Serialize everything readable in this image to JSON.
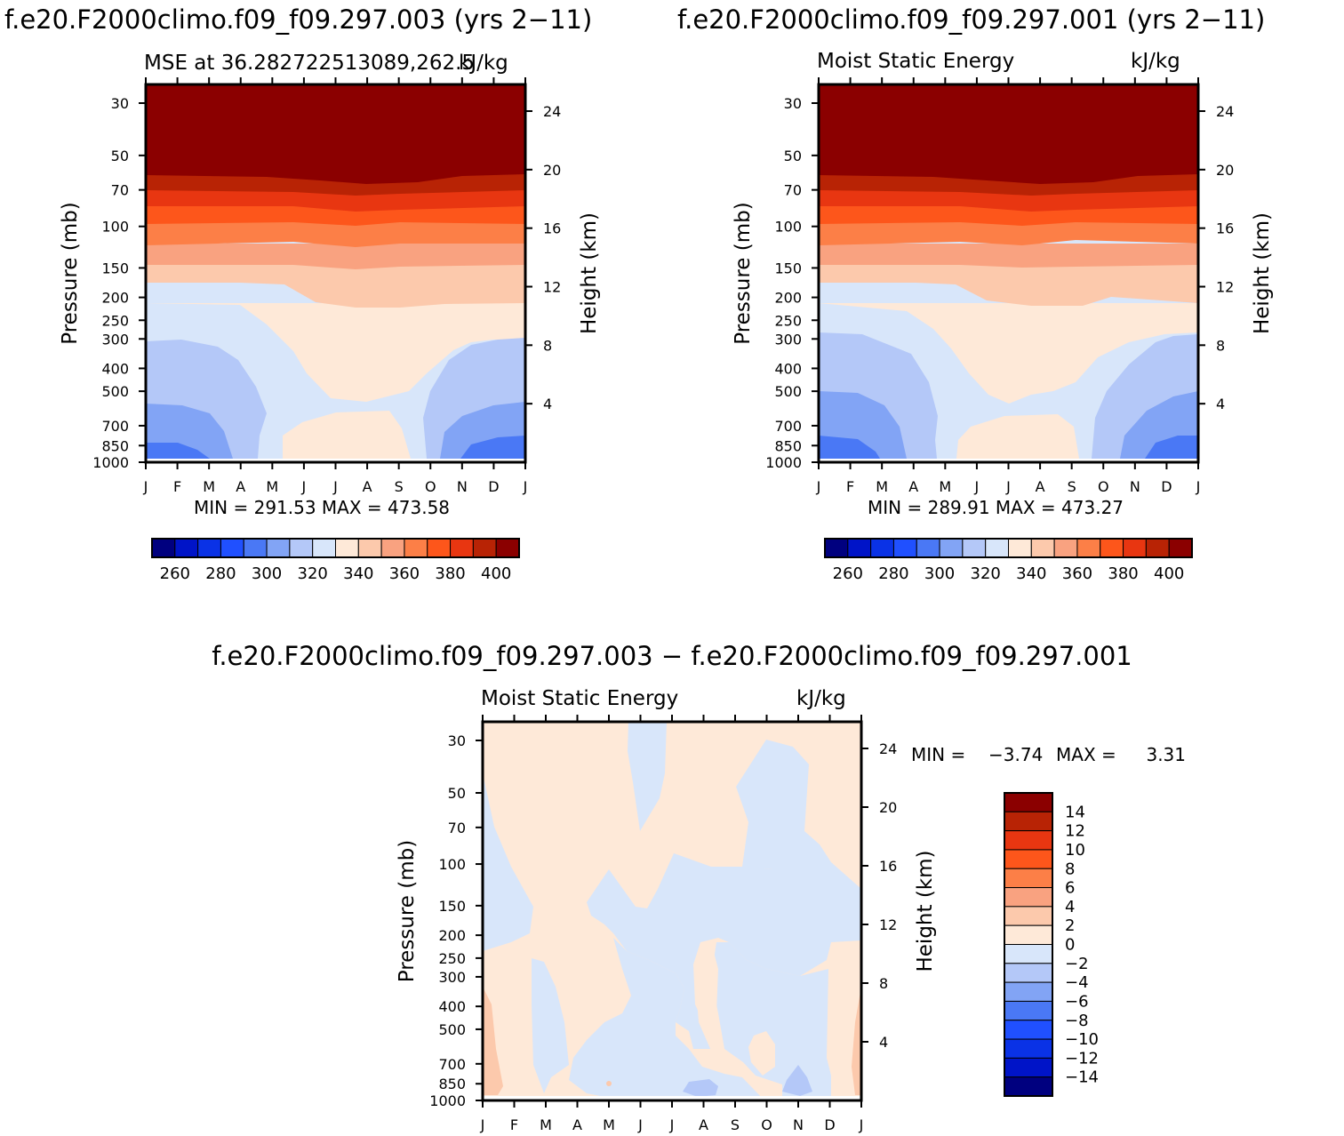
{
  "colors": {
    "mse_scale": [
      "#00007f",
      "#0014c8",
      "#0a32e6",
      "#2050ff",
      "#4a78f5",
      "#82a4f5",
      "#b4c8f8",
      "#d8e6fa",
      "#fee9d8",
      "#fcc9ac",
      "#f9a280",
      "#fc7f47",
      "#fd561b",
      "#e83611",
      "#b82305",
      "#8b0000"
    ],
    "diff_scale": [
      "#00007f",
      "#0014c8",
      "#0a32e6",
      "#2050ff",
      "#4a78f5",
      "#82a4f5",
      "#b4c8f8",
      "#d8e6fa",
      "#fee9d8",
      "#fcc9ac",
      "#f9a280",
      "#fc7f47",
      "#fd561b",
      "#e83611",
      "#b82305",
      "#8b0000"
    ]
  },
  "chart_data": [
    {
      "type": "heatmap",
      "panel": "top-left",
      "header": "f.e20.F2000climo.f09_f09.297.003 (yrs 2−11)",
      "left_title": "MSE at 36.282722513089,262.5",
      "right_title": "kJ/kg",
      "ylabel": "Pressure (mb)",
      "ylabel_right": "Height (km)",
      "pressure_ticks": [
        "30",
        "50",
        "70",
        "100",
        "150",
        "200",
        "250",
        "300",
        "400",
        "500",
        "700",
        "850",
        "1000"
      ],
      "height_ticks": [
        "24",
        "20",
        "16",
        "12",
        "8",
        "4"
      ],
      "month_ticks": [
        "J",
        "F",
        "M",
        "A",
        "M",
        "J",
        "J",
        "A",
        "S",
        "O",
        "N",
        "D",
        "J"
      ],
      "stats": "MIN = 291.53 MAX = 473.58",
      "colorbar_labels": [
        "260",
        "280",
        "300",
        "320",
        "340",
        "360",
        "380",
        "400"
      ],
      "contour_levels": [
        255,
        260,
        265,
        270,
        275,
        280,
        285,
        290,
        295,
        300,
        305,
        310,
        315,
        320,
        325,
        330,
        335,
        340,
        345,
        350,
        355,
        360,
        365,
        370,
        375,
        380,
        385,
        390,
        395,
        400
      ],
      "min": 291.53,
      "max": 473.58
    },
    {
      "type": "heatmap",
      "panel": "top-right",
      "header": "f.e20.F2000climo.f09_f09.297.001 (yrs 2−11)",
      "left_title": "Moist Static Energy",
      "right_title": "kJ/kg",
      "ylabel": "Pressure (mb)",
      "ylabel_right": "Height (km)",
      "pressure_ticks": [
        "30",
        "50",
        "70",
        "100",
        "150",
        "200",
        "250",
        "300",
        "400",
        "500",
        "700",
        "850",
        "1000"
      ],
      "height_ticks": [
        "24",
        "20",
        "16",
        "12",
        "8",
        "4"
      ],
      "month_ticks": [
        "J",
        "F",
        "M",
        "A",
        "M",
        "J",
        "J",
        "A",
        "S",
        "O",
        "N",
        "D",
        "J"
      ],
      "stats": "MIN = 289.91 MAX = 473.27",
      "colorbar_labels": [
        "260",
        "280",
        "300",
        "320",
        "340",
        "360",
        "380",
        "400"
      ],
      "min": 289.91,
      "max": 473.27
    },
    {
      "type": "heatmap",
      "panel": "bottom",
      "header": "f.e20.F2000climo.f09_f09.297.003 − f.e20.F2000climo.f09_f09.297.001",
      "left_title": "Moist Static Energy",
      "right_title": "kJ/kg",
      "ylabel": "Pressure (mb)",
      "ylabel_right": "Height (km)",
      "pressure_ticks": [
        "30",
        "50",
        "70",
        "100",
        "150",
        "200",
        "250",
        "300",
        "400",
        "500",
        "700",
        "850",
        "1000"
      ],
      "height_ticks": [
        "24",
        "20",
        "16",
        "12",
        "8",
        "4"
      ],
      "month_ticks": [
        "J",
        "F",
        "M",
        "A",
        "M",
        "J",
        "J",
        "A",
        "S",
        "O",
        "N",
        "D",
        "J"
      ],
      "stats_min_label": "MIN =",
      "stats_min": "−3.74",
      "stats_max_label": "MAX =",
      "stats_max": "3.31",
      "colorbar_labels": [
        "14",
        "12",
        "10",
        "8",
        "6",
        "4",
        "2",
        "0",
        "−2",
        "−4",
        "−6",
        "−8",
        "−10",
        "−12",
        "−14"
      ],
      "min": -3.74,
      "max": 3.31
    }
  ]
}
